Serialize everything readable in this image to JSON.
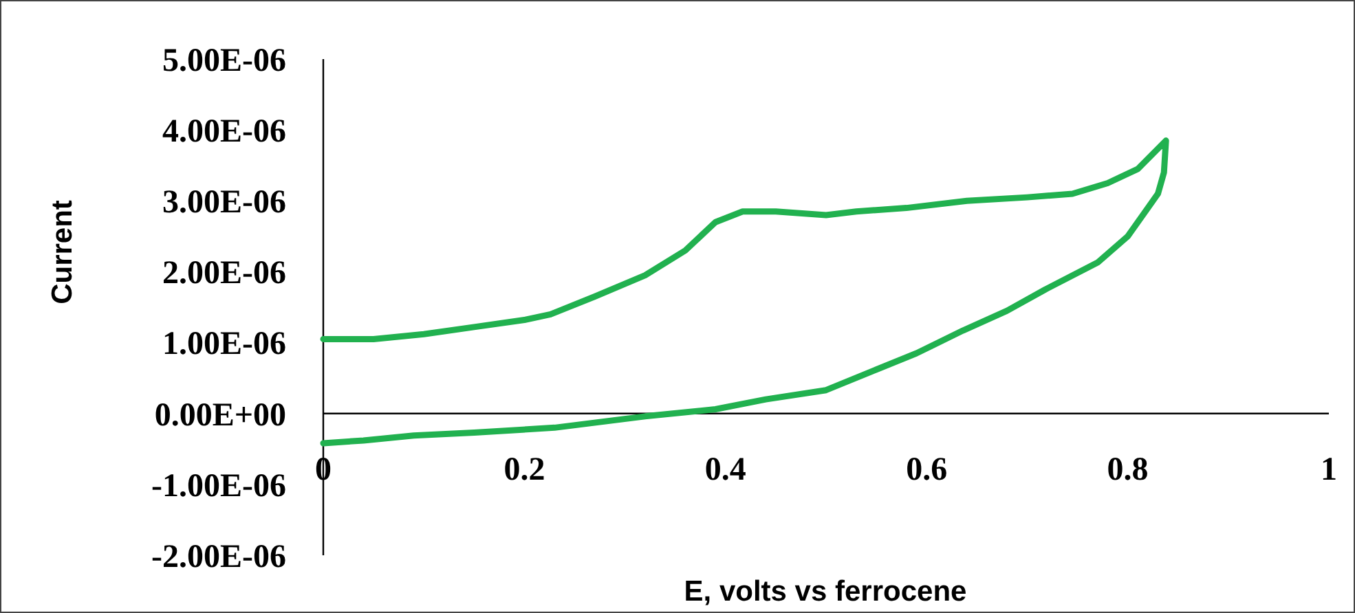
{
  "chart_data": {
    "type": "line",
    "xlabel": "E, volts vs ferrocene",
    "ylabel": "Current",
    "xlim": [
      0,
      1
    ],
    "xticks": [
      0,
      0.2,
      0.4,
      0.6,
      0.8,
      1
    ],
    "ylim": [
      -2e-06,
      5e-06
    ],
    "yticks": [
      {
        "value": -2e-06,
        "label": "-2.00E-06"
      },
      {
        "value": -1e-06,
        "label": "-1.00E-06"
      },
      {
        "value": 0,
        "label": "0.00E+00"
      },
      {
        "value": 1e-06,
        "label": "1.00E-06"
      },
      {
        "value": 2e-06,
        "label": "2.00E-06"
      },
      {
        "value": 3e-06,
        "label": "3.00E-06"
      },
      {
        "value": 4e-06,
        "label": "4.00E-06"
      },
      {
        "value": 5e-06,
        "label": "5.00E-06"
      }
    ],
    "marker": "none",
    "line_style": "solid",
    "series": [
      {
        "color": "#21b14f",
        "x": [
          0,
          0.05,
          0.1,
          0.15,
          0.2,
          0.226,
          0.27,
          0.32,
          0.36,
          0.39,
          0.417,
          0.45,
          0.5,
          0.53,
          0.58,
          0.64,
          0.7,
          0.745,
          0.78,
          0.81,
          0.838,
          0.836,
          0.83,
          0.82,
          0.8,
          0.77,
          0.718,
          0.68,
          0.636,
          0.59,
          0.55,
          0.5,
          0.44,
          0.39,
          0.32,
          0.23,
          0.15,
          0.09,
          0.04,
          0
        ],
        "values": [
          1.05e-06,
          1.05e-06,
          1.12e-06,
          1.22e-06,
          1.32e-06,
          1.4e-06,
          1.65e-06,
          1.95e-06,
          2.3e-06,
          2.7e-06,
          2.85e-06,
          2.85e-06,
          2.8e-06,
          2.85e-06,
          2.9e-06,
          3e-06,
          3.05e-06,
          3.1e-06,
          3.25e-06,
          3.45e-06,
          3.85e-06,
          3.4e-06,
          3.1e-06,
          2.9e-06,
          2.5e-06,
          2.13e-06,
          1.75e-06,
          1.45e-06,
          1.17e-06,
          8.5e-07,
          6.2e-07,
          3.3e-07,
          2e-07,
          6e-08,
          -4e-08,
          -2e-07,
          -2.7e-07,
          -3.1e-07,
          -3.8e-07,
          -4.2e-07
        ]
      }
    ]
  }
}
